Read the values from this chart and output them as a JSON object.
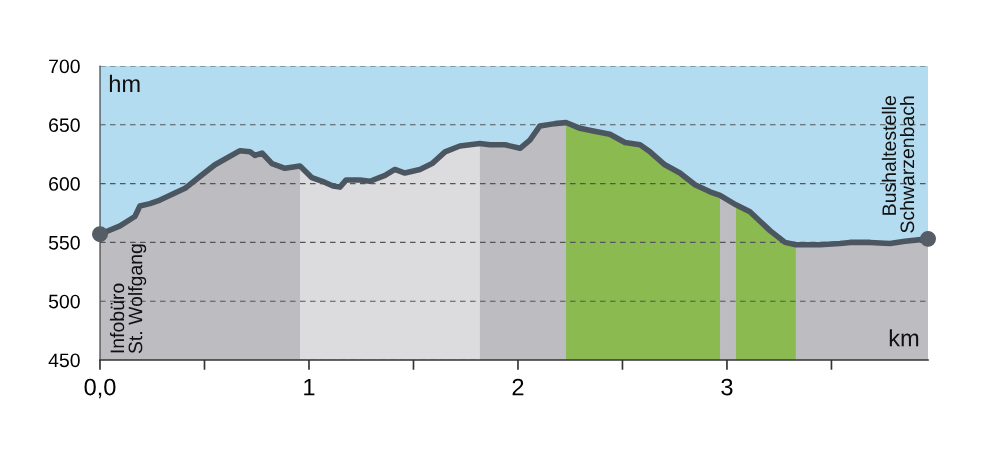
{
  "chart_data": {
    "type": "area",
    "xlim": [
      0,
      3.962
    ],
    "ylim": [
      450,
      700
    ],
    "xticks": [
      {
        "value": 0,
        "label": "0,0"
      },
      {
        "value": 0.5,
        "label": null
      },
      1,
      {
        "value": 1.5,
        "label": null
      },
      2,
      {
        "value": 2.5,
        "label": null
      },
      3,
      {
        "value": 3.5,
        "label": null
      }
    ],
    "yticks": [
      450,
      500,
      550,
      600,
      650,
      700
    ],
    "grid": "y",
    "annotations": [
      "hm",
      "km",
      "Infobüro\nSt. Wolfgang",
      "Bushaltestelle\nSchwarzenbach"
    ],
    "series": [
      {
        "color": "#bdbdc1",
        "x": [
          0,
          0.096,
          0.167,
          0.191,
          0.239,
          0.287,
          0.407,
          0.478,
          0.55,
          0.67,
          0.718,
          0.742,
          0.775,
          0.823,
          0.885,
          0.957
        ],
        "values": [
          557,
          564,
          572,
          581,
          583,
          586,
          596,
          606,
          616,
          628,
          627,
          624,
          626,
          617,
          613,
          615
        ]
      },
      {
        "color": "#dcdcde",
        "x": [
          0.957,
          1.014,
          1.077,
          1.115,
          1.148,
          1.177,
          1.244,
          1.292,
          1.364,
          1.411,
          1.459,
          1.531,
          1.589,
          1.651,
          1.722,
          1.77,
          1.818
        ],
        "values": [
          615,
          605,
          601,
          598,
          597,
          603,
          603,
          602,
          607,
          612,
          609,
          612,
          617,
          627,
          632,
          633,
          634
        ]
      },
      {
        "color": "#bdbdc1",
        "x": [
          1.818,
          1.866,
          1.938,
          2.01,
          2.057,
          2.105,
          2.177,
          2.23
        ],
        "values": [
          634,
          633,
          633,
          630,
          637,
          649,
          651,
          652
        ]
      },
      {
        "color": "#8aba50",
        "x": [
          2.23,
          2.297,
          2.354,
          2.44,
          2.512,
          2.584,
          2.632,
          2.703,
          2.775,
          2.847,
          2.919,
          2.967
        ],
        "values": [
          652,
          647,
          645,
          642,
          635,
          633,
          627,
          616,
          609,
          599,
          593,
          590
        ]
      },
      {
        "color": "#bdbdc1",
        "x": [
          2.967,
          3.043
        ],
        "values": [
          590,
          582
        ]
      },
      {
        "color": "#8aba50",
        "x": [
          3.043,
          3.11,
          3.206,
          3.278,
          3.33
        ],
        "values": [
          582,
          576,
          560,
          550,
          548
        ]
      },
      {
        "color": "#bdbdc1",
        "x": [
          3.33,
          3.349,
          3.445,
          3.541,
          3.589,
          3.684,
          3.78,
          3.852,
          3.962
        ],
        "values": [
          548,
          548,
          548,
          549,
          550,
          550,
          549,
          551,
          553
        ]
      },
      {
        "type": "line",
        "color": "#4b5660",
        "x": [
          0,
          0.096,
          0.167,
          0.191,
          0.239,
          0.287,
          0.407,
          0.478,
          0.55,
          0.67,
          0.718,
          0.742,
          0.775,
          0.823,
          0.885,
          0.957,
          1.014,
          1.077,
          1.115,
          1.148,
          1.177,
          1.244,
          1.292,
          1.364,
          1.411,
          1.459,
          1.531,
          1.589,
          1.651,
          1.722,
          1.77,
          1.818,
          1.866,
          1.938,
          2.01,
          2.057,
          2.105,
          2.177,
          2.23,
          2.297,
          2.354,
          2.44,
          2.512,
          2.584,
          2.632,
          2.703,
          2.775,
          2.847,
          2.919,
          2.967,
          3.043,
          3.11,
          3.206,
          3.278,
          3.33,
          3.349,
          3.445,
          3.541,
          3.589,
          3.684,
          3.78,
          3.852,
          3.962
        ],
        "values": [
          557,
          564,
          572,
          581,
          583,
          586,
          596,
          606,
          616,
          628,
          627,
          624,
          626,
          617,
          613,
          615,
          605,
          601,
          598,
          597,
          603,
          603,
          602,
          607,
          612,
          609,
          612,
          617,
          627,
          632,
          633,
          634,
          633,
          633,
          630,
          637,
          649,
          651,
          652,
          647,
          645,
          642,
          635,
          633,
          627,
          616,
          609,
          599,
          593,
          590,
          582,
          576,
          560,
          550,
          548,
          548,
          548,
          549,
          550,
          550,
          549,
          551,
          553
        ]
      },
      {
        "type": "scatter",
        "color": "#555e66",
        "marker": "circle",
        "x": [
          0,
          3.962
        ],
        "values": [
          557,
          553
        ]
      }
    ]
  }
}
